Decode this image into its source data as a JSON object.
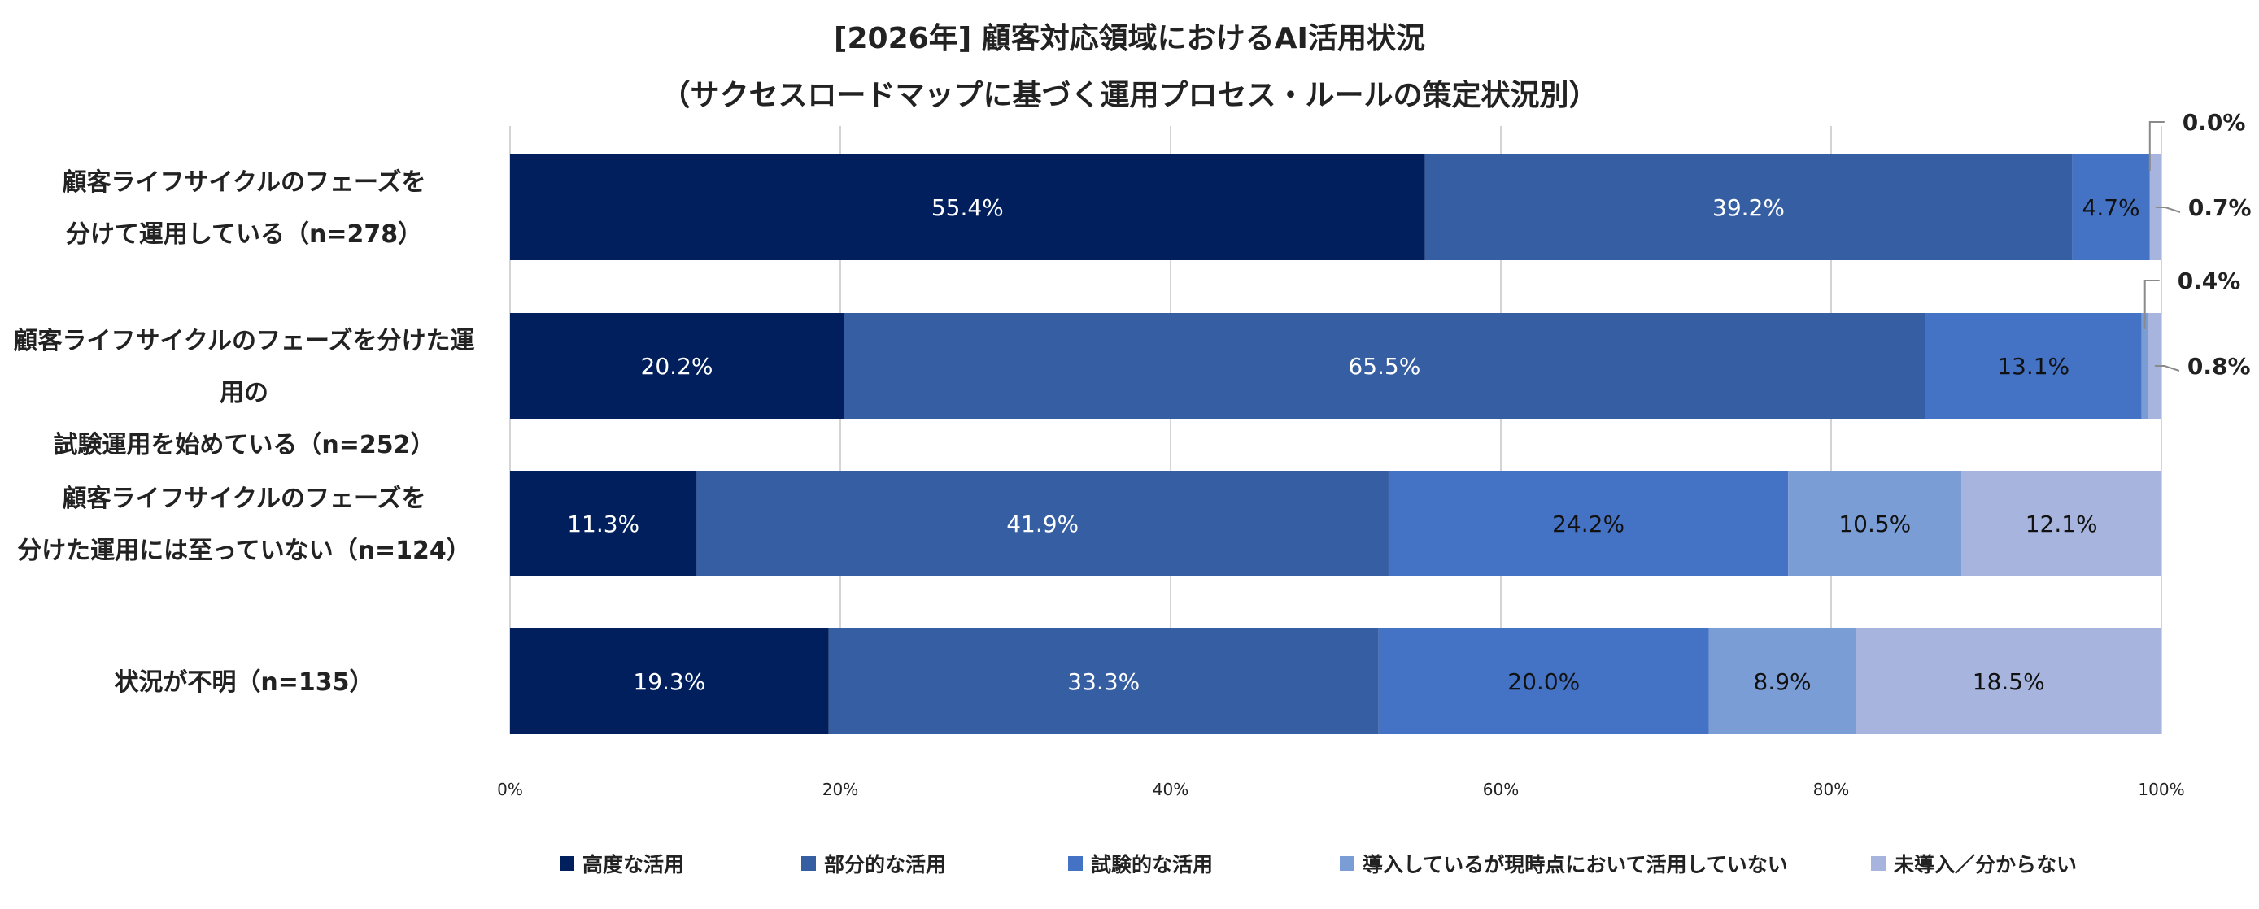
{
  "chart_data": {
    "type": "bar",
    "orientation": "horizontal",
    "stacked": true,
    "title": "[2026年] 顧客対応領域におけるAI活用状況",
    "subtitle": "（サクセスロードマップに基づく運用プロセス・ルールの策定状況別）",
    "categories": [
      {
        "line1": "顧客ライフサイクルのフェーズを",
        "line2": "分けて運用している（n=278）"
      },
      {
        "line1": "顧客ライフサイクルのフェーズを分けた運用の",
        "line2": "試験運用を始めている（n=252）"
      },
      {
        "line1": "顧客ライフサイクルのフェーズを",
        "line2": "分けた運用には至っていない（n=124）"
      },
      {
        "line1": "状況が不明（n=135）",
        "line2": ""
      }
    ],
    "series": [
      {
        "name": "高度な活用",
        "color": "#001f5c",
        "label_color": "#ffffff",
        "values": [
          55.4,
          20.2,
          11.3,
          19.3
        ]
      },
      {
        "name": "部分的な活用",
        "color": "#365ea2",
        "label_color": "#ffffff",
        "values": [
          39.2,
          65.5,
          41.9,
          33.3
        ]
      },
      {
        "name": "試験的な活用",
        "color": "#4472c4",
        "label_color": "#111111",
        "values": [
          4.7,
          13.1,
          24.2,
          20.0
        ]
      },
      {
        "name": "導入しているが現時点において活用していない",
        "color": "#7a9dd6",
        "label_color": "#111111",
        "values": [
          0.0,
          0.4,
          10.5,
          8.9
        ]
      },
      {
        "name": "未導入／分からない",
        "color": "#a7b5de",
        "label_color": "#111111",
        "values": [
          0.7,
          0.8,
          12.1,
          18.5
        ]
      }
    ],
    "data_labels": [
      [
        "55.4%",
        "39.2%",
        "4.7%",
        "0.0%",
        "0.7%"
      ],
      [
        "20.2%",
        "65.5%",
        "13.1%",
        "0.4%",
        "0.8%"
      ],
      [
        "11.3%",
        "41.9%",
        "24.2%",
        "10.5%",
        "12.1%"
      ],
      [
        "19.3%",
        "33.3%",
        "20.0%",
        "8.9%",
        "18.5%"
      ]
    ],
    "x_ticks": [
      "0%",
      "20%",
      "40%",
      "60%",
      "80%",
      "100%"
    ],
    "xlim": [
      0,
      100
    ],
    "grid": true,
    "legend_position": "bottom"
  }
}
